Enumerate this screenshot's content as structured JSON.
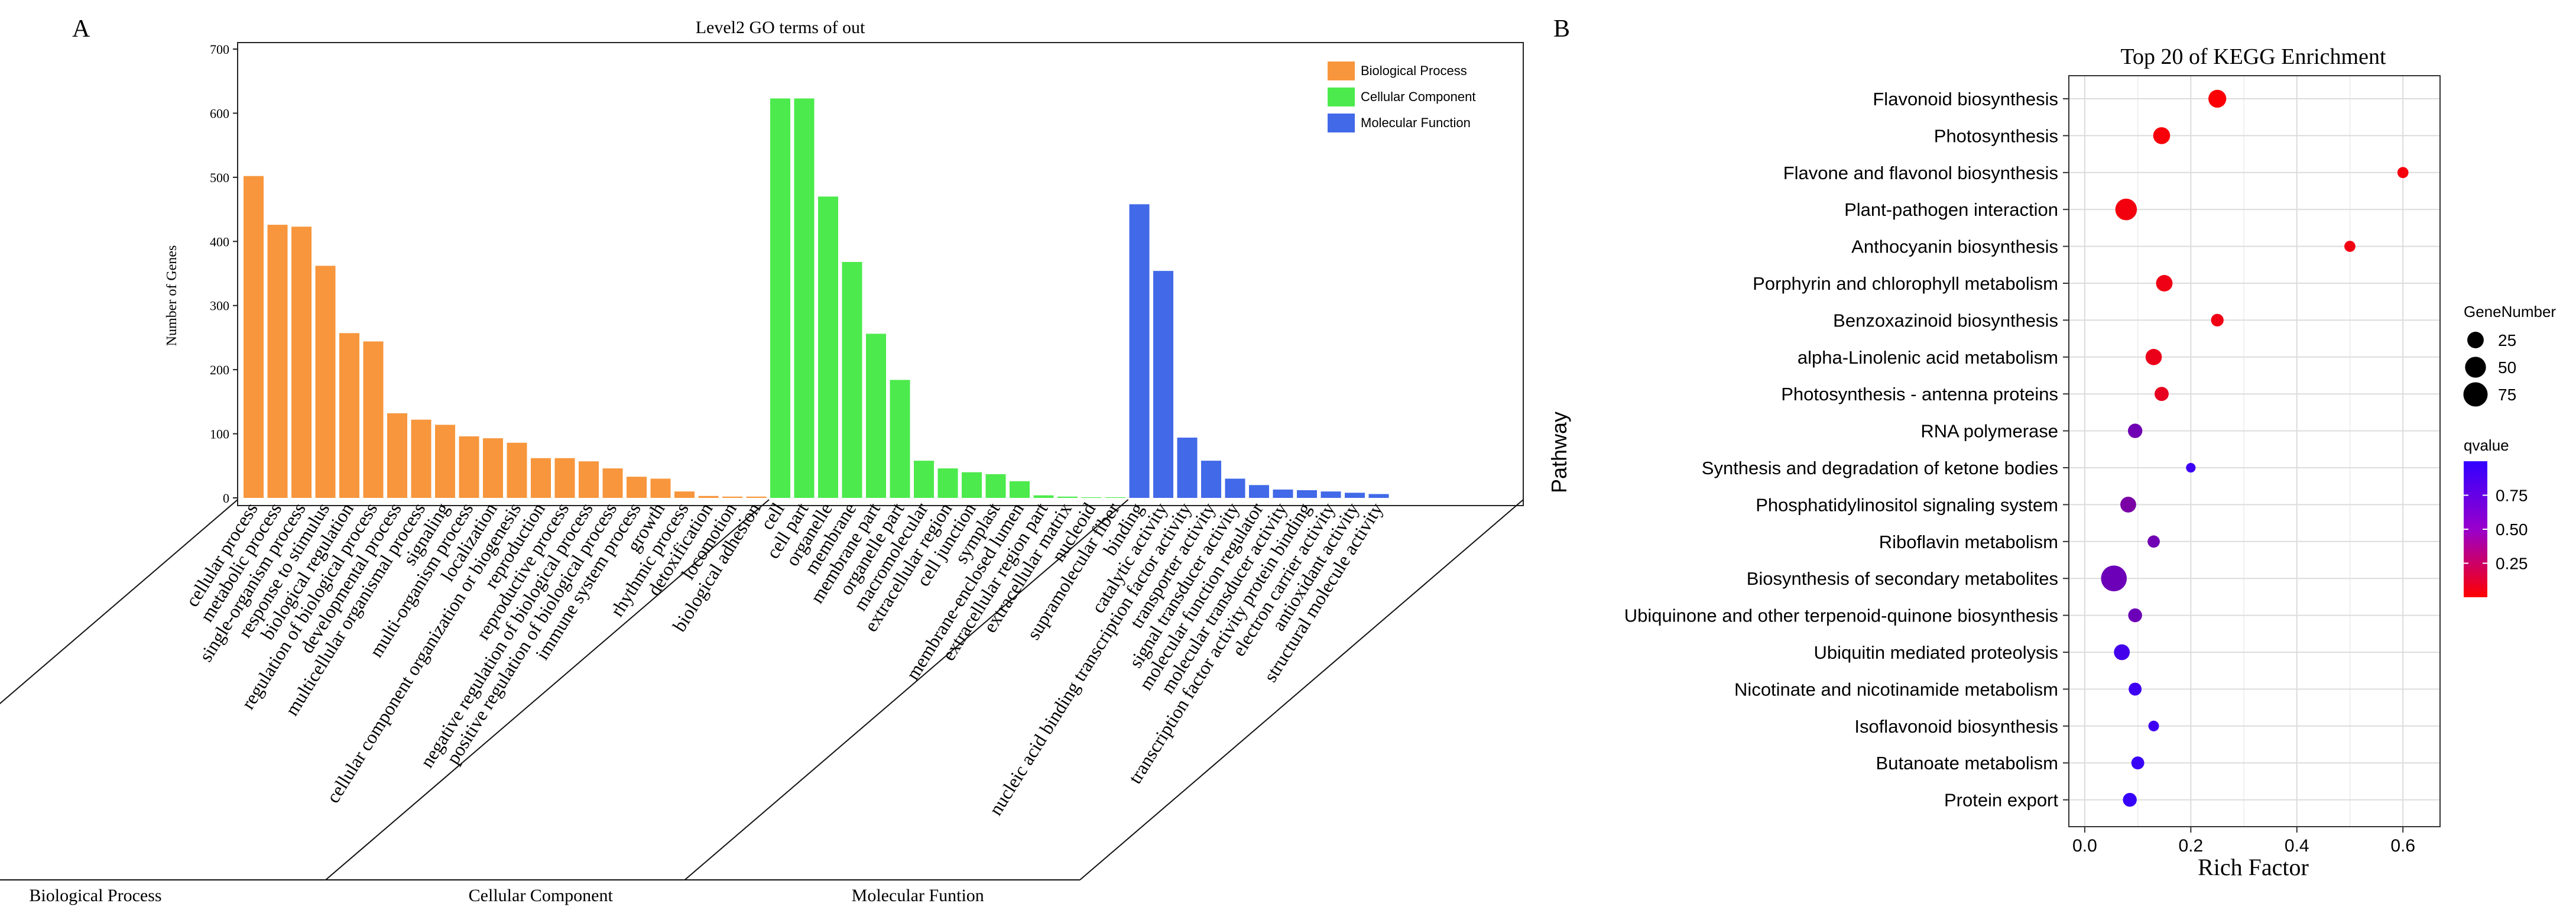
{
  "chart_data": [
    {
      "panel_label": "A",
      "type": "bar",
      "title": "Level2 GO terms of out",
      "ylabel": "Number of Genes",
      "ylim": [
        0,
        700
      ],
      "yticks": [
        0,
        100,
        200,
        300,
        400,
        500,
        600,
        700
      ],
      "grid": false,
      "legend_position": "top-right",
      "series": [
        {
          "name": "Biological Process",
          "group_label": "Biological Process",
          "color": "#F7963C",
          "categories": [
            "cellular process",
            "metabolic process",
            "single-organism process",
            "response to stimulus",
            "biological regulation",
            "regulation of biological process",
            "developmental process",
            "multicellular organismal process",
            "signaling",
            "multi-organism process",
            "localization",
            "cellular component organization or biogenesis",
            "reproduction",
            "reproductive process",
            "negative regulation of biological process",
            "positive regulation of biological process",
            "immune system process",
            "growth",
            "rhythmic process",
            "detoxification",
            "locomotion",
            "biological adhesion"
          ],
          "values": [
            502,
            426,
            423,
            362,
            257,
            244,
            132,
            122,
            114,
            96,
            93,
            86,
            62,
            62,
            57,
            46,
            33,
            30,
            10,
            3,
            2,
            2
          ]
        },
        {
          "name": "Cellular Component",
          "group_label": "Cellular Component",
          "color": "#4CEA4C",
          "categories": [
            "cell",
            "cell part",
            "organelle",
            "membrane",
            "membrane part",
            "organelle part",
            "macromolecular",
            "extracellular region",
            "cell junction",
            "symplast",
            "membrane-enclosed lumen",
            "extracellular region part",
            "extracellular matrix",
            "nucleoid",
            "supramolecular fiber"
          ],
          "values": [
            623,
            623,
            470,
            368,
            256,
            184,
            58,
            46,
            40,
            37,
            26,
            4,
            2,
            1,
            1
          ]
        },
        {
          "name": "Molecular Function",
          "group_label": "Molecular Funtion",
          "color": "#4169E8",
          "categories": [
            "binding",
            "catalytic activity",
            "nucleic acid binding transcription factor activity",
            "transporter activity",
            "signal transducer activity",
            "molecular function regulator",
            "molecular transducer activity",
            "transcription factor activity protein binding",
            "electron carrier activity",
            "antioxidant activity",
            "structural molecule activity"
          ],
          "values": [
            458,
            354,
            94,
            58,
            30,
            20,
            13,
            12,
            10,
            8,
            6
          ]
        }
      ]
    },
    {
      "panel_label": "B",
      "type": "scatter",
      "title": "Top 20 of KEGG Enrichment",
      "xlabel": "Rich Factor",
      "ylabel": "Pathway",
      "xlim": [
        -0.03,
        0.67
      ],
      "xticks": [
        "0.0",
        "0.2",
        "0.4",
        "0.6"
      ],
      "grid": true,
      "size_legend_title": "GeneNumber",
      "size_legend_values": [
        "25",
        "50",
        "75"
      ],
      "color_legend_title": "qvalue",
      "color_legend_ticks": [
        "0.75",
        "0.50",
        "0.25"
      ],
      "color_range": {
        "low": "#FF0000",
        "high": "#3300FF",
        "qmin": 0,
        "qmax": 1
      },
      "points": [
        {
          "pathway": "Flavonoid biosynthesis",
          "rich_factor": 0.25,
          "gene_number": 32,
          "qvalue": 0.02
        },
        {
          "pathway": "Photosynthesis",
          "rich_factor": 0.145,
          "gene_number": 27,
          "qvalue": 0.04
        },
        {
          "pathway": "Flavone and flavonol biosynthesis",
          "rich_factor": 0.6,
          "gene_number": 6,
          "qvalue": 0.05
        },
        {
          "pathway": "Plant-pathogen interaction",
          "rich_factor": 0.078,
          "gene_number": 55,
          "qvalue": 0.06
        },
        {
          "pathway": "Anthocyanin biosynthesis",
          "rich_factor": 0.5,
          "gene_number": 6,
          "qvalue": 0.07
        },
        {
          "pathway": "Porphyrin and chlorophyll metabolism",
          "rich_factor": 0.15,
          "gene_number": 25,
          "qvalue": 0.08
        },
        {
          "pathway": "Benzoxazinoid biosynthesis",
          "rich_factor": 0.25,
          "gene_number": 10,
          "qvalue": 0.08
        },
        {
          "pathway": "alpha-Linolenic acid metabolism",
          "rich_factor": 0.13,
          "gene_number": 24,
          "qvalue": 0.1
        },
        {
          "pathway": "Photosynthesis - antenna proteins",
          "rich_factor": 0.145,
          "gene_number": 15,
          "qvalue": 0.12
        },
        {
          "pathway": "RNA polymerase",
          "rich_factor": 0.095,
          "gene_number": 16,
          "qvalue": 0.7
        },
        {
          "pathway": "Synthesis and degradation of ketone bodies",
          "rich_factor": 0.2,
          "gene_number": 3,
          "qvalue": 0.95
        },
        {
          "pathway": "Phosphatidylinositol signaling system",
          "rich_factor": 0.082,
          "gene_number": 22,
          "qvalue": 0.65
        },
        {
          "pathway": "Riboflavin metabolism",
          "rich_factor": 0.13,
          "gene_number": 9,
          "qvalue": 0.7
        },
        {
          "pathway": "Biosynthesis of secondary metabolites",
          "rich_factor": 0.055,
          "gene_number": 88,
          "qvalue": 0.72
        },
        {
          "pathway": "Ubiquinone and other terpenoid-quinone biosynthesis",
          "rich_factor": 0.095,
          "gene_number": 14,
          "qvalue": 0.72
        },
        {
          "pathway": "Ubiquitin mediated proteolysis",
          "rich_factor": 0.07,
          "gene_number": 22,
          "qvalue": 0.92
        },
        {
          "pathway": "Nicotinate and nicotinamide metabolism",
          "rich_factor": 0.095,
          "gene_number": 11,
          "qvalue": 0.95
        },
        {
          "pathway": "Isoflavonoid biosynthesis",
          "rich_factor": 0.13,
          "gene_number": 5,
          "qvalue": 0.95
        },
        {
          "pathway": "Butanoate metabolism",
          "rich_factor": 0.1,
          "gene_number": 11,
          "qvalue": 0.97
        },
        {
          "pathway": "Protein export",
          "rich_factor": 0.085,
          "gene_number": 14,
          "qvalue": 0.98
        }
      ]
    }
  ]
}
